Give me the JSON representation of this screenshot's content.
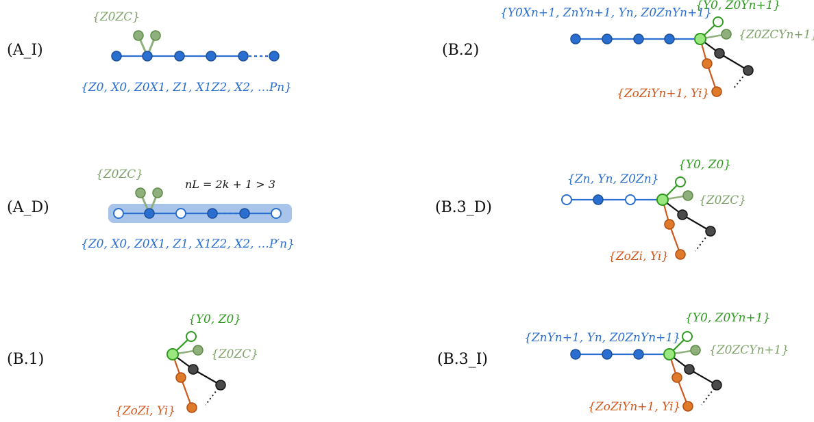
{
  "colors": {
    "blue": "#2a6fcf",
    "blue_edge": "#2a6fcf",
    "sage": "#8fb07c",
    "green_fill": "#9be77f",
    "green_edge": "#2e9a1f",
    "orange": "#e07a2b",
    "black_node": "#4a4a4a",
    "highlight": "#a9c4ea"
  },
  "panels": {
    "AI": {
      "label": "(A_I)",
      "top_set": "{Z0ZC}",
      "bottom_set": "{Z0, X0, Z0X1, Z1, X1Z2, X2, …Pn}"
    },
    "AD": {
      "label": "(A_D)",
      "top_set": "{Z0ZC}",
      "length_note": "nL = 2k + 1 > 3",
      "bottom_set": "{Z0, X0, Z0X1, Z1, X1Z2, X2, …P′n}"
    },
    "B1": {
      "label": "(B.1)",
      "green_set": "{Y0, Z0}",
      "sage_set": "{Z0ZC}",
      "orange_set": "{ZoZi, Yi}"
    },
    "B2": {
      "label": "(B.2)",
      "blue_set": "{Y0Xn+1, ZnYn+1, Yn, Z0ZnYn+1}",
      "green_set": "{Y0, Z0Yn+1}",
      "sage_set": "{Z0ZCYn+1}",
      "orange_set": "{ZoZiYn+1, Yi}"
    },
    "B3D": {
      "label": "(B.3_D)",
      "blue_set": "{Zn, Yn, Z0Zn}",
      "green_set": "{Y0, Z0}",
      "sage_set": "{Z0ZC}",
      "orange_set": "{ZoZi, Yi}"
    },
    "B3I": {
      "label": "(B.3_I)",
      "blue_set": "{ZnYn+1, Yn, Z0ZnYn+1}",
      "green_set": "{Y0, Z0Yn+1}",
      "sage_set": "{Z0ZCYn+1}",
      "orange_set": "{ZoZiYn+1, Yi}"
    }
  }
}
